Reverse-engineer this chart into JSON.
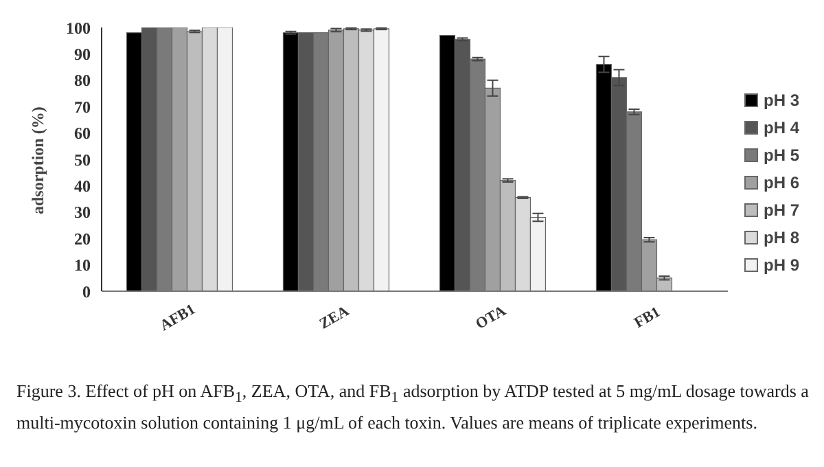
{
  "chart_data": {
    "type": "bar",
    "ylabel": "adsorption (%)",
    "categories": [
      "AFB1",
      "ZEA",
      "OTA",
      "FB1"
    ],
    "series": [
      {
        "name": "pH 3",
        "color": "#000000",
        "values": [
          98,
          98,
          97,
          86
        ],
        "errors": [
          null,
          0.5,
          null,
          3
        ]
      },
      {
        "name": "pH 4",
        "color": "#555555",
        "values": [
          100,
          98,
          95.5,
          81
        ],
        "errors": [
          null,
          null,
          0.5,
          3
        ]
      },
      {
        "name": "pH 5",
        "color": "#7a7a7a",
        "values": [
          100,
          98,
          88,
          68
        ],
        "errors": [
          null,
          null,
          0.6,
          1
        ]
      },
      {
        "name": "pH 6",
        "color": "#a0a0a0",
        "values": [
          100,
          99,
          77,
          19.5
        ],
        "errors": [
          null,
          0.6,
          3,
          0.8
        ]
      },
      {
        "name": "pH 7",
        "color": "#bdbdbd",
        "values": [
          98.5,
          99.5,
          42,
          5
        ],
        "errors": [
          0.4,
          0.3,
          0.6,
          0.7
        ]
      },
      {
        "name": "pH 8",
        "color": "#dadada",
        "values": [
          100,
          99,
          35.5,
          null
        ],
        "errors": [
          null,
          0.4,
          0.3,
          null
        ]
      },
      {
        "name": "pH 9",
        "color": "#f2f2f2",
        "values": [
          100,
          99.5,
          28,
          null
        ],
        "errors": [
          null,
          0.3,
          1.5,
          null
        ]
      }
    ],
    "ylim": [
      0,
      100
    ],
    "yticks": [
      0,
      10,
      20,
      30,
      40,
      50,
      60,
      70,
      80,
      90,
      100
    ],
    "grid": false,
    "legend": "right",
    "annotations": [
      "Figure 3.  Effect of pH on AFB$_{1}$, ZEA, OTA, and FB$_{1}$ adsorption by ATDP tested at 5 mg/mL dosage towards a multi-mycotoxin solution containing 1 μg/mL of each toxin.  Values are means of triplicate experiments."
    ]
  }
}
